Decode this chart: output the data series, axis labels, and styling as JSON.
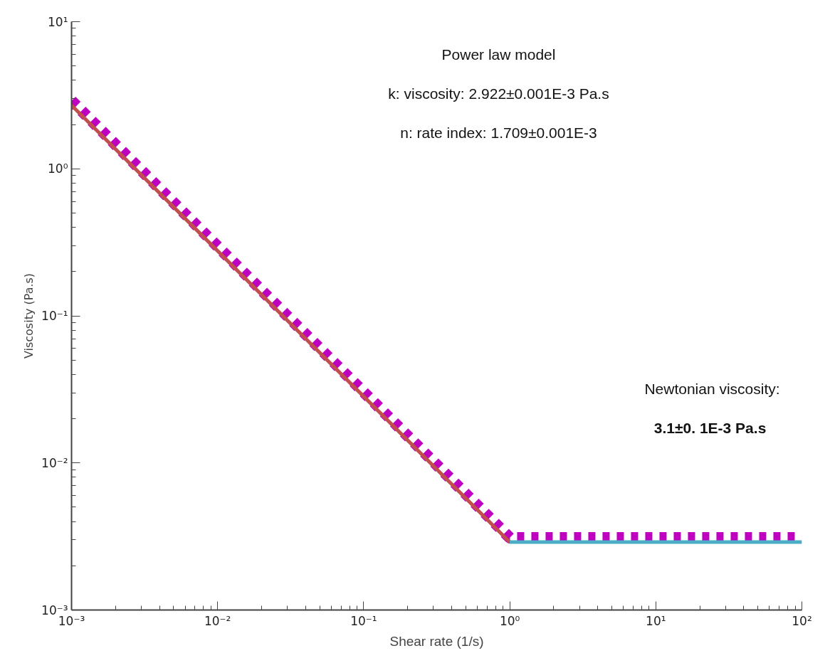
{
  "chart_data": {
    "type": "line",
    "xlabel": "Shear rate (1/s)",
    "ylabel": "Viscosity (Pa.s)",
    "log": "xy",
    "grid": false,
    "marker": "none",
    "xlim": [
      0.001,
      100
    ],
    "ylim": [
      0.001,
      10
    ],
    "xticks": [
      {
        "value": 0.001,
        "label": "10⁻³"
      },
      {
        "value": 0.01,
        "label": "10⁻²"
      },
      {
        "value": 0.1,
        "label": "10⁻¹"
      },
      {
        "value": 1,
        "label": "10⁰"
      },
      {
        "value": 10,
        "label": "10¹"
      },
      {
        "value": 100,
        "label": "10²"
      }
    ],
    "yticks": [
      {
        "value": 0.001,
        "label": "10⁻³"
      },
      {
        "value": 0.01,
        "label": "10⁻²"
      },
      {
        "value": 0.1,
        "label": "10⁻¹"
      },
      {
        "value": 1,
        "label": "10⁰"
      },
      {
        "value": 10,
        "label": "10¹"
      }
    ],
    "series": [
      {
        "color": "#c000c0",
        "line_style": "dashed",
        "x": [
          0.001,
          1,
          100
        ],
        "values": [
          2.9,
          0.0031,
          0.0031
        ]
      },
      {
        "color": "#c0504d",
        "line_style": "solid",
        "x": [
          0.001,
          1
        ],
        "values": [
          2.7,
          0.0029
        ]
      },
      {
        "color": "#4bacc6",
        "line_style": "solid",
        "x": [
          1,
          100
        ],
        "values": [
          0.0029,
          0.0029
        ]
      }
    ],
    "annotations": [
      "Power law model",
      "k: viscosity: 2.922±0.001E-3 Pa.s",
      "n: rate index: 1.709±0.001E-3",
      "Newtonian viscosity:",
      "3.1±0. 1E-3  Pa.s"
    ]
  }
}
